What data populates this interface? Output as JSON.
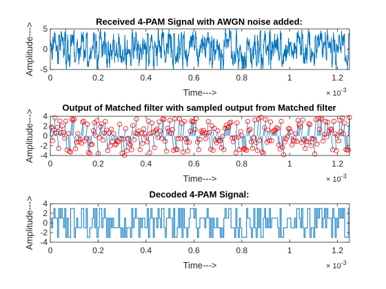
{
  "chart_data": [
    {
      "type": "line",
      "title": "Received 4-PAM Signal with AWGN noise added:",
      "xlabel": "Time--->",
      "ylabel": "Amplitude--->",
      "xlim": [
        0,
        0.00125
      ],
      "ylim": [
        -5,
        5
      ],
      "xticks": [
        0,
        0.0002,
        0.0004,
        0.0006,
        0.0008,
        0.001,
        0.0012
      ],
      "xtick_labels": [
        "0",
        "0.2",
        "0.4",
        "0.6",
        "0.8",
        "1",
        "1.2"
      ],
      "yticks": [
        -5,
        0,
        5
      ],
      "ytick_labels": [
        "-5",
        "0",
        "5"
      ],
      "x_exponent_base": "× 10",
      "x_exponent": "-3",
      "grid": false,
      "series": [
        {
          "kind": "noisy-signal",
          "color": "#0072BD",
          "num_points": 1250,
          "y_range": [
            -5,
            5
          ]
        }
      ]
    },
    {
      "type": "line",
      "title": "Output of Matched filter with sampled output from Matched filter",
      "xlabel": "Time--->",
      "ylabel": "Amplitude--->",
      "xlim": [
        0,
        0.00125
      ],
      "ylim": [
        -4,
        4
      ],
      "xticks": [
        0,
        0.0002,
        0.0004,
        0.0006,
        0.0008,
        0.001,
        0.0012
      ],
      "xtick_labels": [
        "0",
        "0.2",
        "0.4",
        "0.6",
        "0.8",
        "1",
        "1.2"
      ],
      "yticks": [
        -4,
        -2,
        0,
        2,
        4
      ],
      "ytick_labels": [
        "-4",
        "-2",
        "0",
        "2",
        "4"
      ],
      "x_exponent_base": "× 10",
      "x_exponent": "-3",
      "grid": false,
      "series": [
        {
          "kind": "filtered-signal",
          "color": "#0072BD",
          "levels": [
            -3,
            -1,
            1,
            3
          ]
        },
        {
          "kind": "sampled-points",
          "color": "#FF0000",
          "marker": "circle",
          "num_symbols": 250
        }
      ]
    },
    {
      "type": "line",
      "title": "Decoded 4-PAM Signal:",
      "xlabel": "Time--->",
      "ylabel": "Amplitude--->",
      "xlim": [
        0,
        0.00125
      ],
      "ylim": [
        -4,
        4
      ],
      "xticks": [
        0,
        0.0002,
        0.0004,
        0.0006,
        0.0008,
        0.001,
        0.0012
      ],
      "xtick_labels": [
        "0",
        "0.2",
        "0.4",
        "0.6",
        "0.8",
        "1",
        "1.2"
      ],
      "yticks": [
        -4,
        -2,
        0,
        2,
        4
      ],
      "ytick_labels": [
        "-4",
        "-2",
        "0",
        "2",
        "4"
      ],
      "x_exponent_base": "× 10",
      "x_exponent": "-3",
      "grid": false,
      "series": [
        {
          "kind": "step",
          "color": "#0072BD",
          "levels": [
            -3,
            -1,
            1,
            3
          ],
          "num_symbols": 250
        }
      ]
    }
  ]
}
